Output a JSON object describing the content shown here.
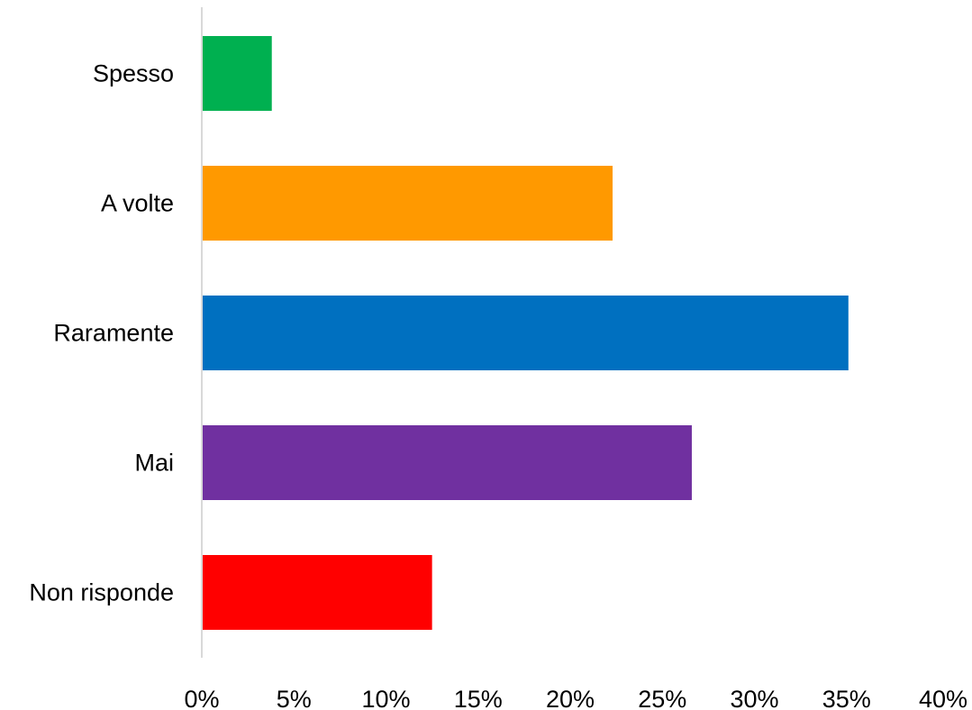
{
  "chart_data": {
    "type": "bar",
    "orientation": "horizontal",
    "title": "",
    "xlabel": "",
    "ylabel": "",
    "categories": [
      "Spesso",
      "A volte",
      "Raramente",
      "Mai",
      "Non risponde"
    ],
    "values": [
      3.8,
      22.3,
      35.1,
      26.6,
      12.5
    ],
    "colors": [
      "#00B050",
      "#FF9900",
      "#0070C0",
      "#7030A0",
      "#FF0000"
    ],
    "xlim": [
      0,
      40
    ],
    "xticks": [
      0,
      5,
      10,
      15,
      20,
      25,
      30,
      35,
      40
    ],
    "xtick_labels": [
      "0%",
      "5%",
      "10%",
      "15%",
      "20%",
      "25%",
      "30%",
      "35%",
      "40%"
    ],
    "grid": false,
    "legend": "none",
    "axis_color": "#D9D9D9"
  }
}
